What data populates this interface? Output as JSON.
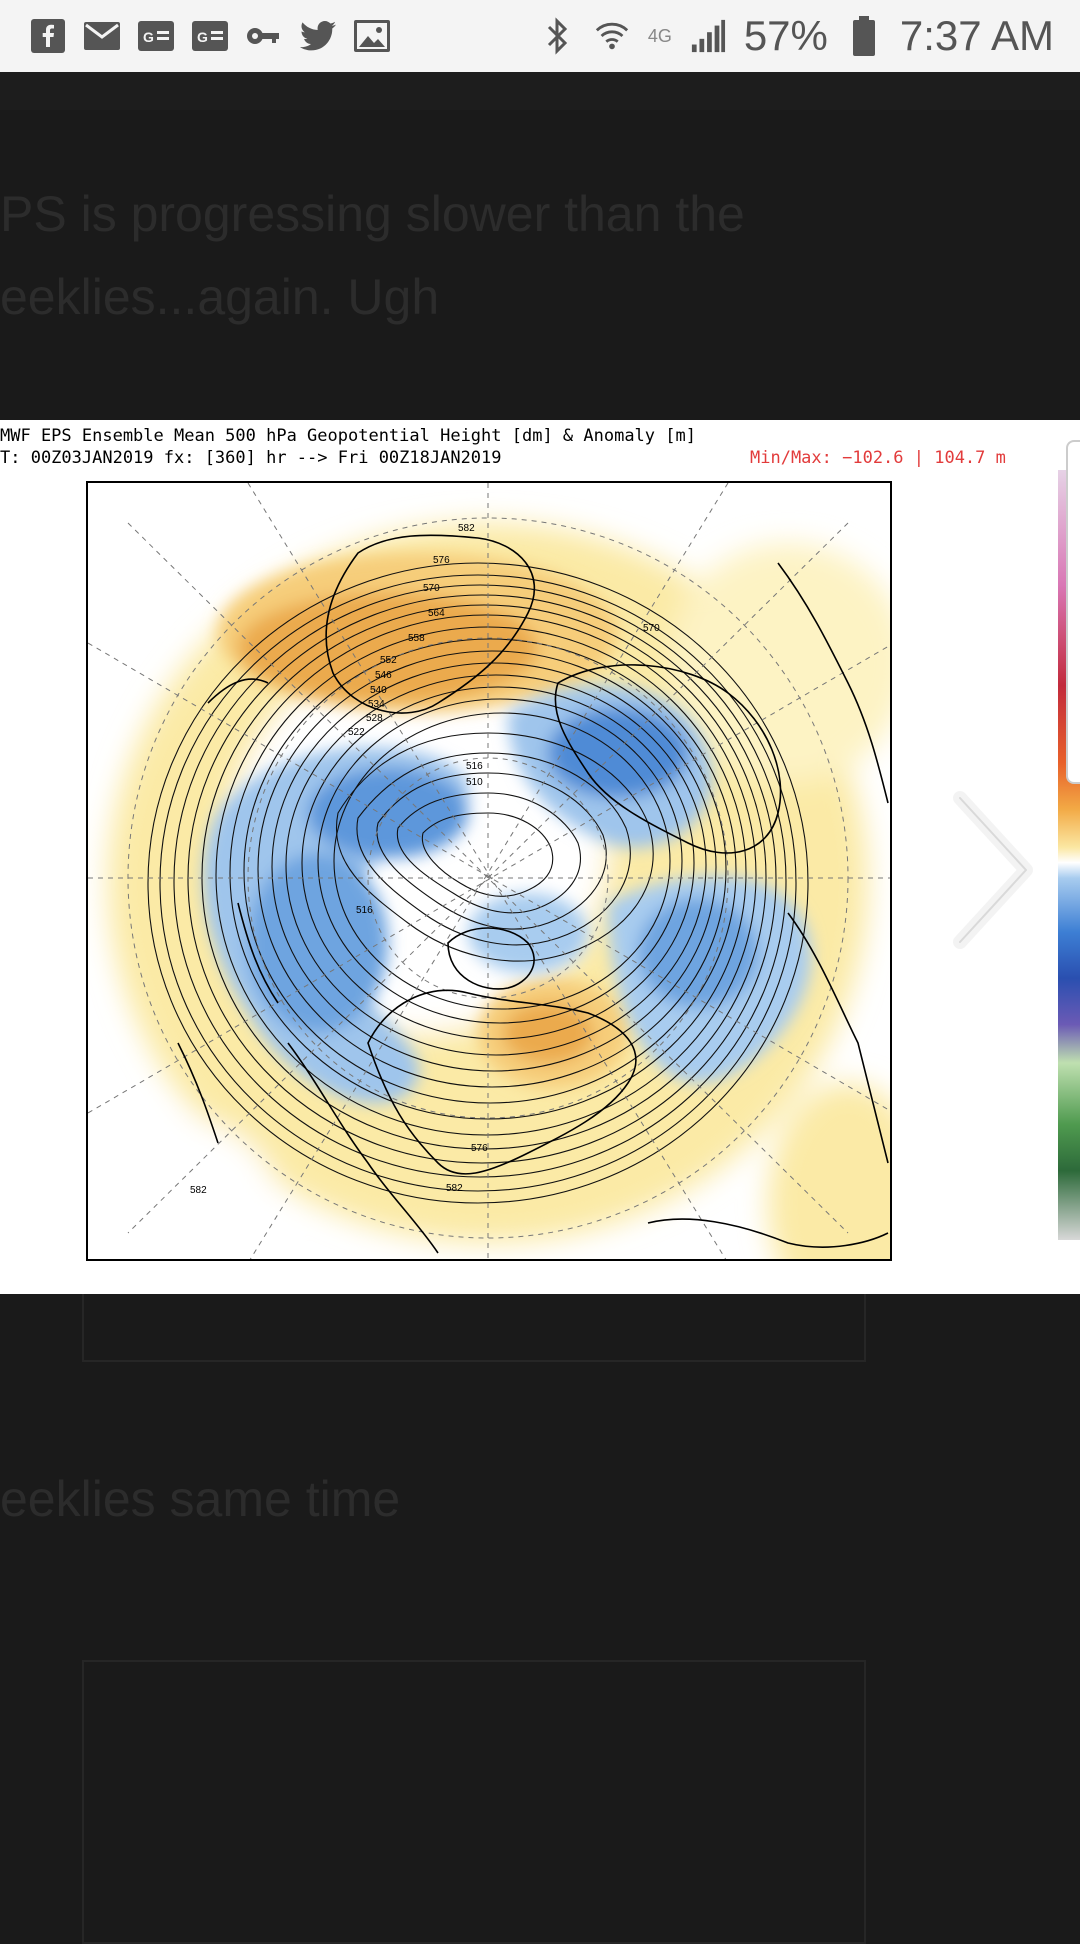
{
  "status_bar": {
    "battery": "57%",
    "time": "7:37 AM",
    "network": "4G",
    "left_icons": [
      "facebook-icon",
      "gmail-icon",
      "news-icon",
      "news-icon",
      "key-icon",
      "twitter-icon",
      "gallery-icon"
    ],
    "right_icons": [
      "bluetooth-icon",
      "wifi-icon",
      "signal-icon",
      "battery-icon"
    ]
  },
  "background_post": {
    "line1": "PS is progressing slower than the",
    "line2": "eeklies...again. Ugh",
    "line3": "eeklies same time"
  },
  "map": {
    "title": "MWF EPS Ensemble Mean 500 hPa Geopotential Height [dm] & Anomaly [m]",
    "subtitle": "T: 00Z03JAN2019  fx: [360] hr --> Fri 00Z18JAN2019",
    "minmax": "Min/Max: −102.6 | 104.7 m",
    "contour_labels": [
      "582",
      "576",
      "570",
      "564",
      "558",
      "552",
      "546",
      "540",
      "534",
      "528",
      "522",
      "516",
      "510",
      "516",
      "570",
      "576",
      "582",
      "582"
    ]
  },
  "colors": {
    "warm_anomaly": "#f7d58a",
    "strong_warm": "#e9a64a",
    "cold_anomaly": "#7fb3e8",
    "strong_cold": "#3b7fd1",
    "minmax_text": "#e23b3b"
  }
}
